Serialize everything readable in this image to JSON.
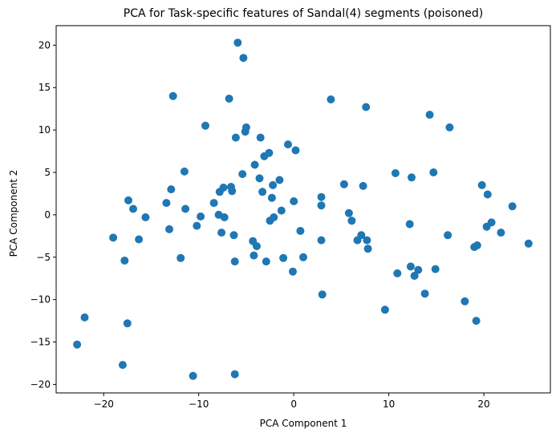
{
  "chart_data": {
    "type": "scatter",
    "title": "PCA for Task-specific features of Sandal(4) segments (poisoned)",
    "xlabel": "PCA Component 1",
    "ylabel": "PCA Component 2",
    "xlim": [
      -25,
      27
    ],
    "ylim": [
      -21,
      22.3
    ],
    "xticks": [
      -20,
      -10,
      0,
      10,
      20
    ],
    "yticks": [
      -20,
      -15,
      -10,
      -5,
      0,
      5,
      10,
      15,
      20
    ],
    "grid": false,
    "legend": "none",
    "marker_color": "#1f77b4",
    "series": [
      {
        "x": [
          -22.8,
          -22.0,
          -19.0,
          -17.8,
          -17.5,
          -17.4,
          -16.9,
          -16.3,
          -15.6,
          -18.0,
          -13.4,
          -13.1,
          -12.9,
          -12.7,
          -11.9,
          -11.5,
          -11.4,
          -10.6,
          -10.2,
          -9.8,
          -9.3,
          -8.4,
          -7.9,
          -7.8,
          -7.6,
          -7.4,
          -7.3,
          -6.8,
          -6.6,
          -6.5,
          -6.3,
          -6.2,
          -6.2,
          -6.1,
          -5.9,
          -5.4,
          -5.3,
          -5.1,
          -5.0,
          -4.3,
          -4.2,
          -4.1,
          -3.9,
          -3.6,
          -3.5,
          -3.3,
          -3.1,
          -2.9,
          -2.6,
          -2.5,
          -2.3,
          -2.2,
          -2.1,
          -1.5,
          -1.3,
          -1.1,
          -0.6,
          -0.1,
          0.0,
          0.2,
          0.7,
          1.0,
          2.9,
          2.9,
          2.9,
          3.0,
          3.9,
          5.3,
          5.8,
          6.1,
          6.7,
          7.1,
          7.3,
          7.6,
          7.7,
          7.8,
          9.6,
          10.7,
          10.9,
          12.2,
          12.3,
          12.4,
          12.7,
          13.1,
          13.8,
          14.3,
          14.7,
          14.9,
          16.2,
          16.4,
          18.0,
          19.0,
          19.2,
          19.3,
          19.8,
          20.3,
          20.4,
          20.8,
          21.8,
          23.0,
          24.7
        ],
        "y": [
          -15.3,
          -12.1,
          -2.7,
          -5.4,
          -12.8,
          1.7,
          0.7,
          -2.9,
          -0.3,
          -17.7,
          1.4,
          -1.7,
          3.0,
          14.0,
          -5.1,
          5.1,
          0.7,
          -19.0,
          -1.3,
          -0.2,
          10.5,
          1.4,
          0.0,
          2.7,
          -2.1,
          3.2,
          -0.3,
          13.7,
          3.3,
          2.8,
          -2.4,
          -18.8,
          -5.5,
          9.1,
          20.3,
          4.8,
          18.5,
          9.8,
          10.3,
          -3.1,
          -4.8,
          5.9,
          -3.7,
          4.3,
          9.1,
          2.7,
          6.9,
          -5.5,
          7.3,
          -0.7,
          2.0,
          3.5,
          -0.3,
          4.1,
          0.5,
          -5.1,
          8.3,
          -6.7,
          1.6,
          7.6,
          -1.9,
          -5.0,
          2.1,
          1.1,
          -3.0,
          -9.4,
          13.6,
          3.6,
          0.2,
          -0.7,
          -3.0,
          -2.4,
          3.4,
          12.7,
          -3.0,
          -4.0,
          -11.2,
          4.9,
          -6.9,
          -1.1,
          -6.1,
          4.4,
          -7.2,
          -6.5,
          -9.3,
          11.8,
          5.0,
          -6.4,
          -2.4,
          10.3,
          -10.2,
          -3.8,
          -12.5,
          -3.6,
          3.5,
          -1.4,
          2.4,
          -0.9,
          -2.1,
          1.0,
          -3.4
        ]
      }
    ]
  }
}
